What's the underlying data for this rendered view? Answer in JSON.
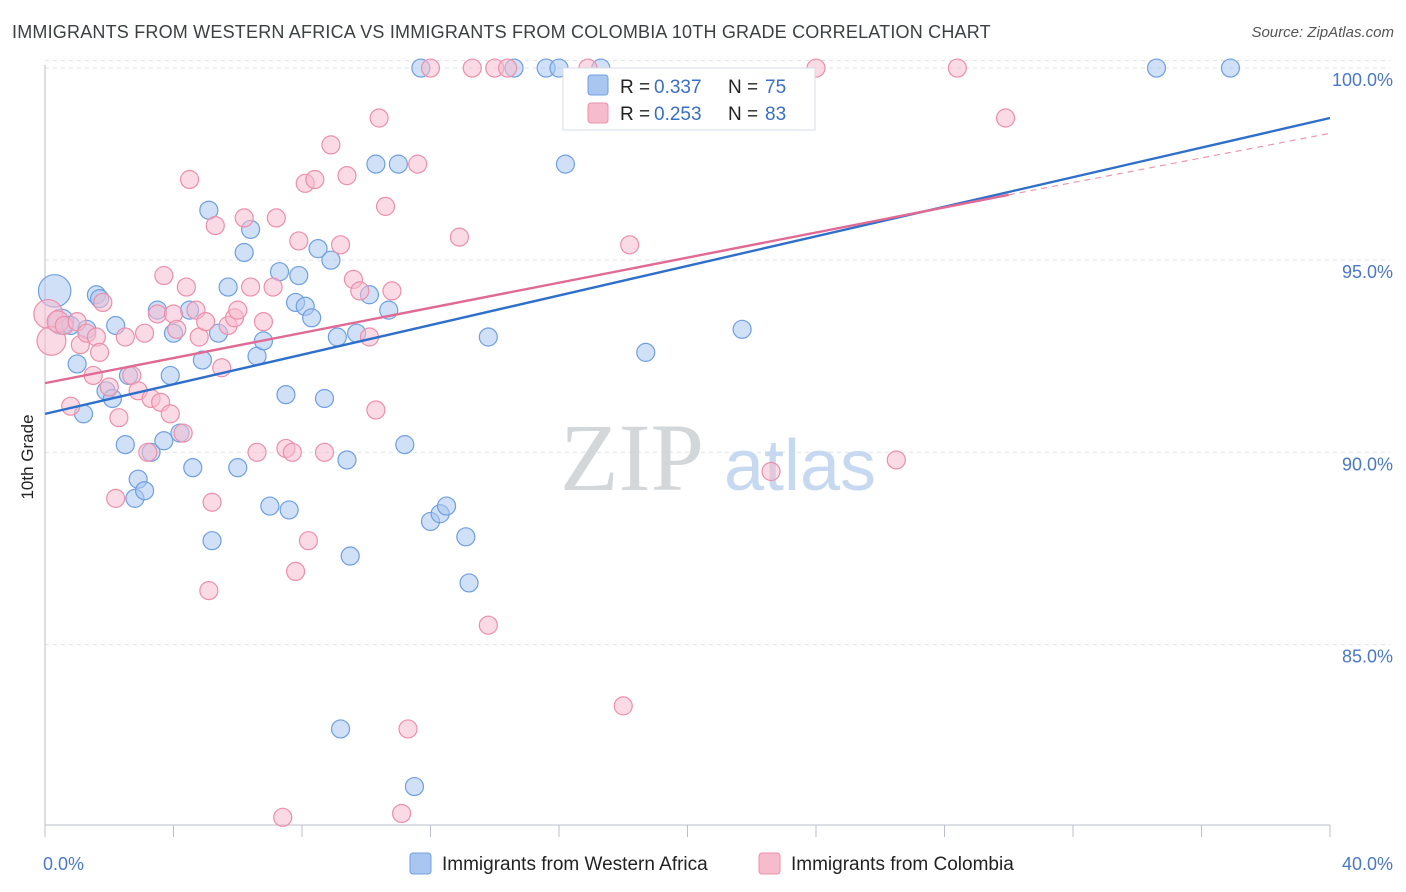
{
  "title": "IMMIGRANTS FROM WESTERN AFRICA VS IMMIGRANTS FROM COLOMBIA 10TH GRADE CORRELATION CHART",
  "source": "Source: ZipAtlas.com",
  "watermark": {
    "zip": "ZIP",
    "atlas": "atlas"
  },
  "colors": {
    "blue_fill": "#a9c6f0",
    "blue_stroke": "#6f9fe0",
    "blue_line": "#2f6fcc",
    "pink_fill": "#f6bccd",
    "pink_stroke": "#ec8fab",
    "pink_line": "#e06a94",
    "grid": "#dde3ea",
    "tick_text": "#4a78c6"
  },
  "legend": {
    "series": [
      {
        "r_label": "R = ",
        "r_value": "0.337",
        "n_label": "N = ",
        "n_value": "75"
      },
      {
        "r_label": "R = ",
        "r_value": "0.253",
        "n_label": "N = ",
        "n_value": "83"
      }
    ]
  },
  "chart_data": {
    "type": "scatter",
    "ylabel": "10th Grade",
    "xlim": [
      0,
      40
    ],
    "ylim": [
      80.3,
      100.6
    ],
    "x_ticks": [
      0,
      40
    ],
    "x_tick_labels": [
      "0.0%",
      "40.0%"
    ],
    "y_ticks": [
      85,
      90,
      95,
      100
    ],
    "y_tick_labels": [
      "85.0%",
      "90.0%",
      "95.0%",
      "100.0%"
    ],
    "grid": true,
    "legend_placement": "top-center",
    "series": [
      {
        "name": "Immigrants from Western Africa",
        "color_key": "blue",
        "R": 0.337,
        "N": 75,
        "trend": {
          "x": [
            0,
            40
          ],
          "y": [
            91.0,
            98.7
          ]
        },
        "points": [
          [
            0.3,
            94.2,
            1.8
          ],
          [
            0.5,
            93.4,
            1.4
          ],
          [
            0.8,
            93.3,
            1.0
          ],
          [
            1.0,
            92.3,
            1.0
          ],
          [
            1.2,
            91.0,
            1.0
          ],
          [
            1.3,
            93.2,
            1.0
          ],
          [
            1.6,
            94.1,
            1.0
          ],
          [
            1.7,
            94.0,
            1.0
          ],
          [
            1.9,
            91.6,
            1.0
          ],
          [
            2.1,
            91.4,
            1.0
          ],
          [
            2.2,
            93.3,
            1.0
          ],
          [
            2.5,
            90.2,
            1.0
          ],
          [
            2.6,
            92.0,
            1.0
          ],
          [
            2.8,
            88.8,
            1.0
          ],
          [
            2.9,
            89.3,
            1.0
          ],
          [
            3.1,
            89.0,
            1.0
          ],
          [
            3.3,
            90.0,
            1.0
          ],
          [
            3.5,
            93.7,
            1.0
          ],
          [
            3.7,
            90.3,
            1.0
          ],
          [
            3.9,
            92.0,
            1.0
          ],
          [
            4.0,
            93.1,
            1.0
          ],
          [
            4.2,
            90.5,
            1.0
          ],
          [
            4.5,
            93.7,
            1.0
          ],
          [
            4.6,
            89.6,
            1.0
          ],
          [
            4.9,
            92.4,
            1.0
          ],
          [
            5.1,
            96.3,
            1.0
          ],
          [
            5.2,
            87.7,
            1.0
          ],
          [
            5.4,
            93.1,
            1.0
          ],
          [
            5.7,
            94.3,
            1.0
          ],
          [
            6.0,
            89.6,
            1.0
          ],
          [
            6.2,
            95.2,
            1.0
          ],
          [
            6.4,
            95.8,
            1.0
          ],
          [
            6.6,
            92.5,
            1.0
          ],
          [
            6.8,
            92.9,
            1.0
          ],
          [
            7.0,
            88.6,
            1.0
          ],
          [
            7.3,
            94.7,
            1.0
          ],
          [
            7.5,
            91.5,
            1.0
          ],
          [
            7.6,
            88.5,
            1.0
          ],
          [
            7.8,
            93.9,
            1.0
          ],
          [
            7.9,
            94.6,
            1.0
          ],
          [
            8.1,
            93.8,
            1.0
          ],
          [
            8.3,
            93.5,
            1.0
          ],
          [
            8.5,
            95.3,
            1.0
          ],
          [
            8.7,
            91.4,
            1.0
          ],
          [
            8.9,
            95.0,
            1.0
          ],
          [
            9.1,
            93.0,
            1.0
          ],
          [
            9.2,
            82.8,
            1.0
          ],
          [
            9.4,
            89.8,
            1.0
          ],
          [
            9.5,
            87.3,
            1.0
          ],
          [
            9.7,
            93.1,
            1.0
          ],
          [
            10.1,
            94.1,
            1.0
          ],
          [
            10.3,
            97.5,
            1.0
          ],
          [
            10.7,
            93.7,
            1.0
          ],
          [
            11.0,
            97.5,
            1.0
          ],
          [
            11.2,
            90.2,
            1.0
          ],
          [
            11.5,
            81.3,
            1.0
          ],
          [
            11.7,
            100.0,
            1.0
          ],
          [
            12.0,
            88.2,
            1.0
          ],
          [
            12.3,
            88.4,
            1.0
          ],
          [
            12.5,
            88.6,
            1.0
          ],
          [
            13.1,
            87.8,
            1.0
          ],
          [
            13.2,
            86.6,
            1.0
          ],
          [
            13.8,
            93.0,
            1.0
          ],
          [
            14.6,
            100.0,
            1.0
          ],
          [
            15.6,
            100.0,
            1.0
          ],
          [
            16.0,
            100.0,
            1.0
          ],
          [
            16.2,
            97.5,
            1.0
          ],
          [
            17.3,
            100.0,
            1.0
          ],
          [
            18.7,
            92.6,
            1.0
          ],
          [
            21.7,
            93.2,
            1.0
          ],
          [
            34.6,
            100.0,
            1.0
          ],
          [
            36.9,
            100.0,
            1.0
          ]
        ]
      },
      {
        "name": "Immigrants from Colombia",
        "color_key": "pink",
        "R": 0.253,
        "N": 83,
        "trend": {
          "x": [
            0,
            30
          ],
          "y": [
            91.8,
            96.7
          ]
        },
        "trend_dashed": {
          "x": [
            30,
            40
          ],
          "y": [
            96.7,
            98.3
          ]
        },
        "points": [
          [
            0.1,
            93.6,
            1.6
          ],
          [
            0.2,
            92.9,
            1.6
          ],
          [
            0.4,
            93.4,
            1.2
          ],
          [
            0.6,
            93.3,
            1.0
          ],
          [
            0.8,
            91.2,
            1.0
          ],
          [
            1.0,
            93.4,
            1.0
          ],
          [
            1.1,
            92.8,
            1.0
          ],
          [
            1.3,
            93.1,
            1.0
          ],
          [
            1.5,
            92.0,
            1.0
          ],
          [
            1.6,
            93.0,
            1.0
          ],
          [
            1.7,
            92.6,
            1.0
          ],
          [
            1.8,
            93.9,
            1.0
          ],
          [
            2.0,
            91.7,
            1.0
          ],
          [
            2.2,
            88.8,
            1.0
          ],
          [
            2.3,
            90.9,
            1.0
          ],
          [
            2.5,
            93.0,
            1.0
          ],
          [
            2.7,
            92.0,
            1.0
          ],
          [
            2.9,
            91.6,
            1.0
          ],
          [
            3.1,
            93.1,
            1.0
          ],
          [
            3.2,
            90.0,
            1.0
          ],
          [
            3.3,
            91.4,
            1.0
          ],
          [
            3.5,
            93.6,
            1.0
          ],
          [
            3.6,
            91.3,
            1.0
          ],
          [
            3.7,
            94.6,
            1.0
          ],
          [
            3.9,
            91.0,
            1.0
          ],
          [
            4.0,
            93.6,
            1.0
          ],
          [
            4.1,
            93.2,
            1.0
          ],
          [
            4.3,
            90.5,
            1.0
          ],
          [
            4.4,
            94.3,
            1.0
          ],
          [
            4.5,
            97.1,
            1.0
          ],
          [
            4.7,
            93.7,
            1.0
          ],
          [
            4.8,
            93.0,
            1.0
          ],
          [
            5.0,
            93.4,
            1.0
          ],
          [
            5.1,
            86.4,
            1.0
          ],
          [
            5.2,
            88.7,
            1.0
          ],
          [
            5.3,
            95.9,
            1.0
          ],
          [
            5.5,
            92.2,
            1.0
          ],
          [
            5.7,
            93.3,
            1.0
          ],
          [
            5.9,
            93.5,
            1.0
          ],
          [
            6.0,
            93.7,
            1.0
          ],
          [
            6.2,
            96.1,
            1.0
          ],
          [
            6.4,
            94.3,
            1.0
          ],
          [
            6.6,
            90.0,
            1.0
          ],
          [
            6.8,
            93.4,
            1.0
          ],
          [
            7.1,
            94.3,
            1.0
          ],
          [
            7.2,
            96.1,
            1.0
          ],
          [
            7.4,
            80.5,
            1.0
          ],
          [
            7.5,
            90.1,
            1.0
          ],
          [
            7.7,
            90.0,
            1.0
          ],
          [
            7.8,
            86.9,
            1.0
          ],
          [
            7.9,
            95.5,
            1.0
          ],
          [
            8.1,
            97.0,
            1.0
          ],
          [
            8.2,
            87.7,
            1.0
          ],
          [
            8.4,
            97.1,
            1.0
          ],
          [
            8.7,
            90.0,
            1.0
          ],
          [
            8.9,
            98.0,
            1.0
          ],
          [
            9.2,
            95.4,
            1.0
          ],
          [
            9.4,
            97.2,
            1.0
          ],
          [
            9.6,
            94.5,
            1.0
          ],
          [
            9.8,
            94.2,
            1.0
          ],
          [
            10.1,
            93.0,
            1.0
          ],
          [
            10.3,
            91.1,
            1.0
          ],
          [
            10.4,
            98.7,
            1.0
          ],
          [
            10.6,
            96.4,
            1.0
          ],
          [
            10.8,
            94.2,
            1.0
          ],
          [
            11.1,
            80.6,
            1.0
          ],
          [
            11.3,
            82.8,
            1.0
          ],
          [
            11.6,
            97.5,
            1.0
          ],
          [
            12.0,
            100.0,
            1.0
          ],
          [
            12.9,
            95.6,
            1.0
          ],
          [
            13.3,
            100.0,
            1.0
          ],
          [
            13.8,
            85.5,
            1.0
          ],
          [
            14.0,
            100.0,
            1.0
          ],
          [
            14.4,
            100.0,
            1.0
          ],
          [
            16.9,
            100.0,
            1.0
          ],
          [
            18.0,
            83.4,
            1.0
          ],
          [
            18.2,
            95.4,
            1.0
          ],
          [
            22.6,
            89.5,
            1.0
          ],
          [
            24.0,
            100.0,
            1.0
          ],
          [
            26.5,
            89.8,
            1.0
          ],
          [
            28.4,
            100.0,
            1.0
          ],
          [
            29.9,
            98.7,
            1.0
          ]
        ]
      }
    ]
  }
}
